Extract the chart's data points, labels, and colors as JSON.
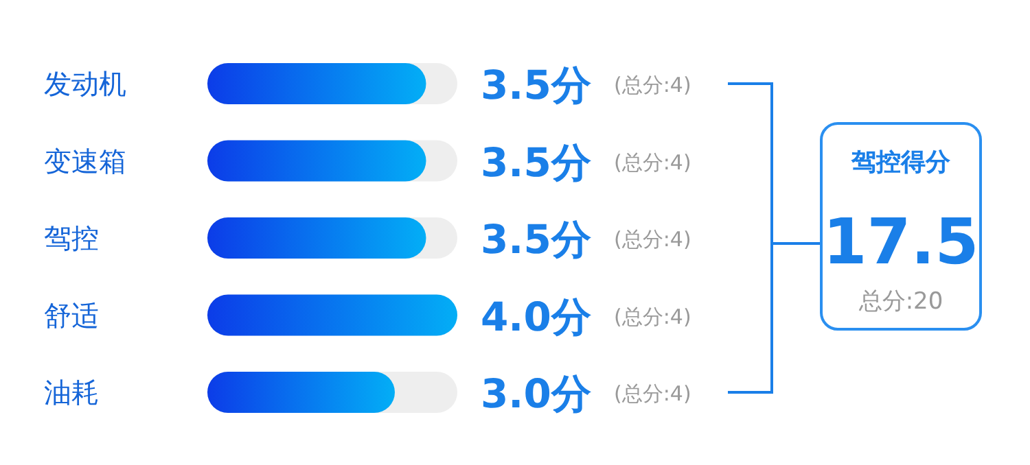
{
  "chart_data": {
    "type": "bar",
    "orientation": "horizontal",
    "categories": [
      "发动机",
      "变速箱",
      "驾控",
      "舒适",
      "油耗"
    ],
    "values": [
      3.5,
      3.5,
      3.5,
      4.0,
      3.0
    ],
    "color": "#03aef6",
    "xlim": [
      0,
      4
    ],
    "tick_labels": false,
    "value_labels": [
      "3.5分",
      "3.5分",
      "3.5分",
      "4.0分",
      "3.0分"
    ],
    "annotations": [
      "(总分:4)",
      "(总分:4)",
      "(总分:4)",
      "(总分:4)",
      "(总分:4)",
      "驾控得分",
      "17.5",
      "总分:20"
    ]
  }
}
